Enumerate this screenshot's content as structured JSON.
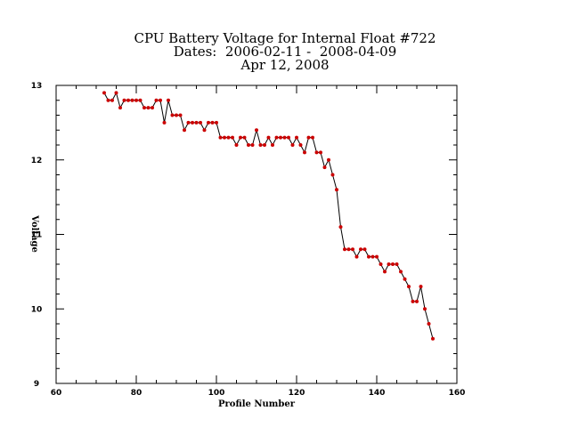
{
  "chart_data": {
    "type": "line",
    "title_lines": [
      "CPU Battery Voltage for Internal Float #722",
      "Dates:  2006-02-11 -  2008-04-09",
      "Apr 12, 2008"
    ],
    "xlabel": "Profile Number",
    "ylabel": "Voltage",
    "xlim": [
      60,
      160
    ],
    "ylim": [
      9,
      13
    ],
    "xticks": [
      60,
      80,
      100,
      120,
      140,
      160
    ],
    "yticks": [
      9,
      10,
      11,
      12,
      13
    ],
    "line_color": "#000000",
    "marker_color": "#cc0000",
    "series": [
      {
        "x": [
          72,
          73,
          74,
          75,
          76,
          77,
          78,
          79,
          80,
          81,
          82,
          83,
          84,
          85,
          86,
          87,
          88,
          89,
          90,
          91,
          92,
          93,
          94,
          95,
          96,
          97,
          98,
          99,
          100,
          101,
          102,
          103,
          104,
          105,
          106,
          107,
          108,
          109,
          110,
          111,
          112,
          113,
          114,
          115,
          116,
          117,
          118,
          119,
          120,
          121,
          122,
          123,
          124,
          125,
          126,
          127,
          128,
          129,
          130,
          131,
          132,
          133,
          134,
          135,
          136,
          137,
          138,
          139,
          140,
          141,
          142,
          143,
          144,
          145,
          146,
          147,
          148,
          149,
          150,
          151,
          152,
          153,
          154
        ],
        "y": [
          12.9,
          12.8,
          12.8,
          12.9,
          12.7,
          12.8,
          12.8,
          12.8,
          12.8,
          12.8,
          12.7,
          12.7,
          12.7,
          12.8,
          12.8,
          12.5,
          12.8,
          12.6,
          12.6,
          12.6,
          12.4,
          12.5,
          12.5,
          12.5,
          12.5,
          12.4,
          12.5,
          12.5,
          12.5,
          12.3,
          12.3,
          12.3,
          12.3,
          12.2,
          12.3,
          12.3,
          12.2,
          12.2,
          12.4,
          12.2,
          12.2,
          12.3,
          12.2,
          12.3,
          12.3,
          12.3,
          12.3,
          12.2,
          12.3,
          12.2,
          12.1,
          12.3,
          12.3,
          12.1,
          12.1,
          11.9,
          12.0,
          11.8,
          11.6,
          11.1,
          10.8,
          10.8,
          10.8,
          10.7,
          10.8,
          10.8,
          10.7,
          10.7,
          10.7,
          10.6,
          10.5,
          10.6,
          10.6,
          10.6,
          10.5,
          10.4,
          10.3,
          10.1,
          10.1,
          10.3,
          10.0,
          9.8,
          9.6
        ]
      }
    ]
  }
}
